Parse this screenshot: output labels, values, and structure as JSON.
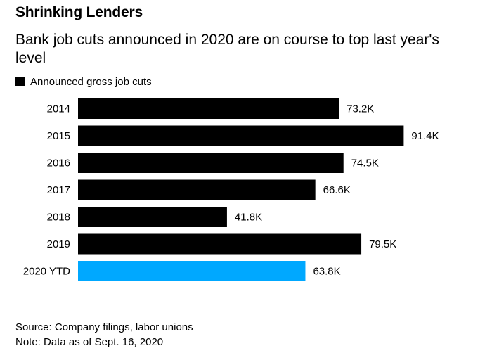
{
  "chart_data": {
    "type": "bar",
    "orientation": "horizontal",
    "title": "Shrinking Lenders",
    "subtitle": "Bank job cuts announced in 2020 are on course to top last year's level",
    "categories": [
      "2014",
      "2015",
      "2016",
      "2017",
      "2018",
      "2019",
      "2020 YTD"
    ],
    "series": [
      {
        "name": "Announced gross job cuts",
        "values": [
          73.2,
          91.4,
          74.5,
          66.6,
          41.8,
          79.5,
          63.8
        ],
        "labels": [
          "73.2K",
          "91.4K",
          "74.5K",
          "66.6K",
          "41.8K",
          "79.5K",
          "63.8K"
        ]
      }
    ],
    "colors": {
      "default": "#000000",
      "highlight": "#00a8ff"
    },
    "highlight_category": "2020 YTD",
    "xlim": [
      0,
      100
    ],
    "grid": false,
    "legend_position": "top-left"
  },
  "footer": {
    "source": "Source: Company filings, labor unions",
    "note": "Note: Data as of Sept. 16, 2020"
  }
}
